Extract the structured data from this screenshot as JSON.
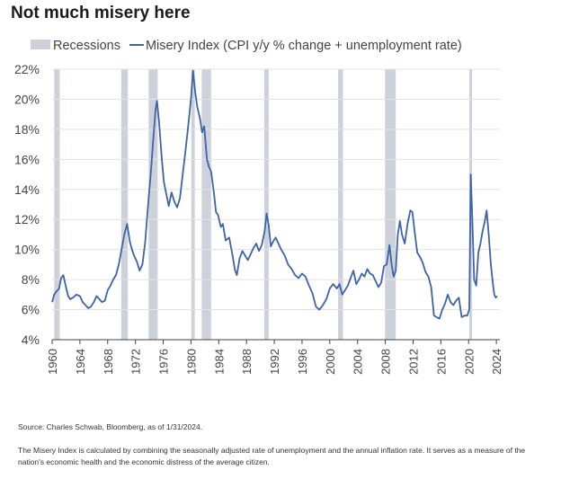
{
  "title": "Not much misery here",
  "source": "Source: Charles Schwab, Bloomberg, as of 1/31/2024.",
  "note": "The Misery Index is calculated by combining the seasonally adjusted rate of unemployment and the annual inflation rate. It serves as a measure of the nation's economic health and the economic distress of the average citizen.",
  "colors": {
    "line": "#3e63a8",
    "recession": "#cdd2da",
    "grid": "#e3e3e3",
    "axis": "#444444",
    "text": "#444444"
  },
  "chart_data": {
    "type": "line",
    "legend": [
      {
        "key": "recession",
        "label": "Recessions",
        "marker": "bar"
      },
      {
        "key": "series",
        "label": "Misery Index (CPI y/y % change + unemployment rate)",
        "marker": "line"
      }
    ],
    "legend_position": "top-left",
    "grid": true,
    "xlim": [
      1960,
      2024.5
    ],
    "ylim": [
      4,
      22
    ],
    "x_ticks": [
      1960,
      1964,
      1968,
      1972,
      1976,
      1980,
      1984,
      1988,
      1992,
      1996,
      2000,
      2004,
      2008,
      2012,
      2016,
      2020,
      2024
    ],
    "y_ticks": [
      4,
      6,
      8,
      10,
      12,
      14,
      16,
      18,
      20,
      22
    ],
    "y_tick_labels": [
      "4%",
      "6%",
      "8%",
      "10%",
      "12%",
      "14%",
      "16%",
      "18%",
      "20%",
      "22%"
    ],
    "recessions": [
      [
        1960.3,
        1961.1
      ],
      [
        1969.95,
        1970.9
      ],
      [
        1973.9,
        1975.2
      ],
      [
        1980.05,
        1980.55
      ],
      [
        1981.55,
        1982.9
      ],
      [
        1990.55,
        1991.2
      ],
      [
        2001.2,
        2001.9
      ],
      [
        2007.95,
        2009.5
      ],
      [
        2020.1,
        2020.4
      ]
    ],
    "series": [
      {
        "name": "Misery Index (CPI y/y % change + unemployment rate)",
        "points": [
          [
            1960,
            6.5
          ],
          [
            1960.3,
            7.0
          ],
          [
            1960.6,
            7.2
          ],
          [
            1961,
            7.4
          ],
          [
            1961.3,
            8.1
          ],
          [
            1961.6,
            8.3
          ],
          [
            1962,
            7.5
          ],
          [
            1962.3,
            6.9
          ],
          [
            1962.6,
            6.7
          ],
          [
            1963,
            6.8
          ],
          [
            1963.5,
            7.0
          ],
          [
            1964,
            6.9
          ],
          [
            1964.4,
            6.5
          ],
          [
            1964.8,
            6.3
          ],
          [
            1965.2,
            6.1
          ],
          [
            1965.6,
            6.2
          ],
          [
            1966,
            6.5
          ],
          [
            1966.4,
            6.9
          ],
          [
            1966.8,
            6.7
          ],
          [
            1967.2,
            6.5
          ],
          [
            1967.6,
            6.6
          ],
          [
            1968,
            7.3
          ],
          [
            1968.4,
            7.6
          ],
          [
            1968.8,
            8.0
          ],
          [
            1969.2,
            8.3
          ],
          [
            1969.6,
            9.0
          ],
          [
            1970,
            10.0
          ],
          [
            1970.4,
            11.0
          ],
          [
            1970.8,
            11.7
          ],
          [
            1971.2,
            10.5
          ],
          [
            1971.5,
            10.0
          ],
          [
            1971.8,
            9.6
          ],
          [
            1972.2,
            9.2
          ],
          [
            1972.6,
            8.6
          ],
          [
            1973,
            9.0
          ],
          [
            1973.4,
            10.5
          ],
          [
            1973.8,
            12.8
          ],
          [
            1974.2,
            15.0
          ],
          [
            1974.6,
            17.5
          ],
          [
            1974.9,
            19.3
          ],
          [
            1975.1,
            19.9
          ],
          [
            1975.4,
            18.5
          ],
          [
            1975.8,
            16.0
          ],
          [
            1976.1,
            14.5
          ],
          [
            1976.4,
            13.8
          ],
          [
            1976.8,
            12.9
          ],
          [
            1977.2,
            13.8
          ],
          [
            1977.6,
            13.2
          ],
          [
            1978,
            12.8
          ],
          [
            1978.4,
            13.4
          ],
          [
            1978.8,
            15.0
          ],
          [
            1979.2,
            16.5
          ],
          [
            1979.6,
            18.2
          ],
          [
            1980,
            20.0
          ],
          [
            1980.3,
            21.9
          ],
          [
            1980.6,
            20.5
          ],
          [
            1980.9,
            19.5
          ],
          [
            1981.3,
            18.7
          ],
          [
            1981.6,
            17.8
          ],
          [
            1981.9,
            18.2
          ],
          [
            1982.3,
            16.0
          ],
          [
            1982.6,
            15.5
          ],
          [
            1982.9,
            15.2
          ],
          [
            1983.3,
            13.8
          ],
          [
            1983.6,
            12.5
          ],
          [
            1983.9,
            12.3
          ],
          [
            1984.3,
            11.5
          ],
          [
            1984.6,
            11.7
          ],
          [
            1985,
            10.6
          ],
          [
            1985.5,
            10.8
          ],
          [
            1986,
            9.6
          ],
          [
            1986.3,
            8.7
          ],
          [
            1986.6,
            8.3
          ],
          [
            1987,
            9.4
          ],
          [
            1987.4,
            9.9
          ],
          [
            1987.8,
            9.6
          ],
          [
            1988.2,
            9.3
          ],
          [
            1988.6,
            9.7
          ],
          [
            1989,
            10.1
          ],
          [
            1989.4,
            10.4
          ],
          [
            1989.8,
            9.9
          ],
          [
            1990.2,
            10.3
          ],
          [
            1990.6,
            11.2
          ],
          [
            1990.9,
            12.4
          ],
          [
            1991.2,
            11.6
          ],
          [
            1991.5,
            10.2
          ],
          [
            1991.8,
            10.5
          ],
          [
            1992.2,
            10.8
          ],
          [
            1992.6,
            10.4
          ],
          [
            1993,
            10.0
          ],
          [
            1993.5,
            9.6
          ],
          [
            1994,
            9.0
          ],
          [
            1994.5,
            8.7
          ],
          [
            1995,
            8.3
          ],
          [
            1995.5,
            8.1
          ],
          [
            1996,
            8.4
          ],
          [
            1996.5,
            8.2
          ],
          [
            1997,
            7.6
          ],
          [
            1997.5,
            7.1
          ],
          [
            1998,
            6.2
          ],
          [
            1998.5,
            6.0
          ],
          [
            1999,
            6.3
          ],
          [
            1999.5,
            6.7
          ],
          [
            2000,
            7.4
          ],
          [
            2000.5,
            7.7
          ],
          [
            2001,
            7.4
          ],
          [
            2001.4,
            7.7
          ],
          [
            2001.8,
            7.0
          ],
          [
            2002.2,
            7.3
          ],
          [
            2002.6,
            7.6
          ],
          [
            2003,
            8.1
          ],
          [
            2003.4,
            8.6
          ],
          [
            2003.8,
            7.7
          ],
          [
            2004.2,
            8.0
          ],
          [
            2004.6,
            8.4
          ],
          [
            2005,
            8.2
          ],
          [
            2005.4,
            8.7
          ],
          [
            2005.8,
            8.4
          ],
          [
            2006.2,
            8.3
          ],
          [
            2006.6,
            7.9
          ],
          [
            2007,
            7.5
          ],
          [
            2007.4,
            7.8
          ],
          [
            2007.8,
            8.9
          ],
          [
            2008.2,
            9.0
          ],
          [
            2008.6,
            10.3
          ],
          [
            2008.9,
            9.0
          ],
          [
            2009.2,
            8.2
          ],
          [
            2009.5,
            8.6
          ],
          [
            2009.8,
            11.0
          ],
          [
            2010.1,
            11.9
          ],
          [
            2010.4,
            11.0
          ],
          [
            2010.8,
            10.4
          ],
          [
            2011.2,
            11.7
          ],
          [
            2011.6,
            12.6
          ],
          [
            2011.9,
            12.5
          ],
          [
            2012.2,
            11.3
          ],
          [
            2012.6,
            9.8
          ],
          [
            2013,
            9.5
          ],
          [
            2013.4,
            9.1
          ],
          [
            2013.8,
            8.5
          ],
          [
            2014.2,
            8.2
          ],
          [
            2014.6,
            7.5
          ],
          [
            2015,
            5.6
          ],
          [
            2015.4,
            5.5
          ],
          [
            2015.8,
            5.4
          ],
          [
            2016.2,
            6.0
          ],
          [
            2016.6,
            6.4
          ],
          [
            2017,
            7.0
          ],
          [
            2017.4,
            6.5
          ],
          [
            2017.8,
            6.3
          ],
          [
            2018.2,
            6.6
          ],
          [
            2018.6,
            6.8
          ],
          [
            2019,
            5.5
          ],
          [
            2019.4,
            5.6
          ],
          [
            2019.8,
            5.6
          ],
          [
            2020.1,
            6.0
          ],
          [
            2020.3,
            15.0
          ],
          [
            2020.5,
            12.5
          ],
          [
            2020.8,
            8.0
          ],
          [
            2021.1,
            7.6
          ],
          [
            2021.4,
            9.8
          ],
          [
            2021.7,
            10.4
          ],
          [
            2022,
            11.2
          ],
          [
            2022.3,
            11.8
          ],
          [
            2022.6,
            12.6
          ],
          [
            2022.9,
            11.0
          ],
          [
            2023.2,
            9.0
          ],
          [
            2023.5,
            7.7
          ],
          [
            2023.7,
            7.0
          ],
          [
            2023.9,
            6.8
          ],
          [
            2024.1,
            6.9
          ]
        ]
      }
    ]
  }
}
